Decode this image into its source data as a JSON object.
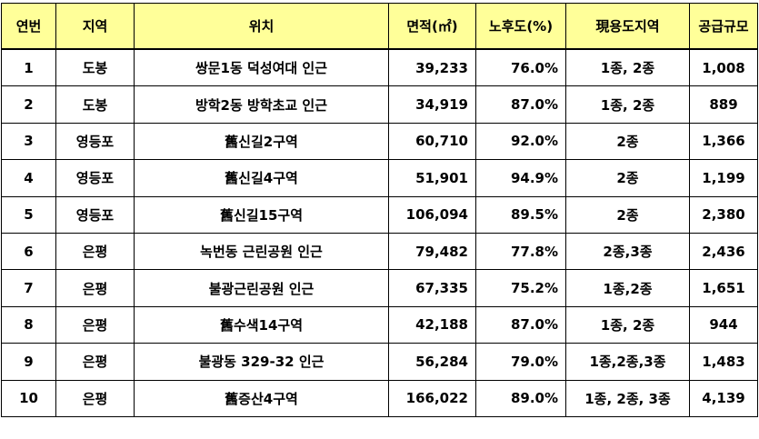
{
  "headers": {
    "no": "연번",
    "region": "지역",
    "location": "위치",
    "area": "면적(㎡)",
    "aging": "노후도(%)",
    "zoning": "現용도지역",
    "supply": "공급규모"
  },
  "rows": [
    {
      "no": "1",
      "region": "도봉",
      "location": "쌍문1동 덕성여대 인근",
      "area": "39,233",
      "aging": "76.0%",
      "zoning": "1종, 2종",
      "supply": "1,008"
    },
    {
      "no": "2",
      "region": "도봉",
      "location": "방학2동 방학초교 인근",
      "area": "34,919",
      "aging": "87.0%",
      "zoning": "1종, 2종",
      "supply": "889"
    },
    {
      "no": "3",
      "region": "영등포",
      "location": "舊신길2구역",
      "area": "60,710",
      "aging": "92.0%",
      "zoning": "2종",
      "supply": "1,366"
    },
    {
      "no": "4",
      "region": "영등포",
      "location": "舊신길4구역",
      "area": "51,901",
      "aging": "94.9%",
      "zoning": "2종",
      "supply": "1,199"
    },
    {
      "no": "5",
      "region": "영등포",
      "location": "舊신길15구역",
      "area": "106,094",
      "aging": "89.5%",
      "zoning": "2종",
      "supply": "2,380"
    },
    {
      "no": "6",
      "region": "은평",
      "location": "녹번동 근린공원 인근",
      "area": "79,482",
      "aging": "77.8%",
      "zoning": "2종,3종",
      "supply": "2,436"
    },
    {
      "no": "7",
      "region": "은평",
      "location": "불광근린공원 인근",
      "area": "67,335",
      "aging": "75.2%",
      "zoning": "1종,2종",
      "supply": "1,651"
    },
    {
      "no": "8",
      "region": "은평",
      "location": "舊수색14구역",
      "area": "42,188",
      "aging": "87.0%",
      "zoning": "1종, 2종",
      "supply": "944"
    },
    {
      "no": "9",
      "region": "은평",
      "location": "불광동 329-32 인근",
      "area": "56,284",
      "aging": "79.0%",
      "zoning": "1종,2종,3종",
      "supply": "1,483"
    },
    {
      "no": "10",
      "region": "은평",
      "location": "舊증산4구역",
      "area": "166,022",
      "aging": "89.0%",
      "zoning": "1종, 2종, 3종",
      "supply": "4,139"
    }
  ],
  "colors": {
    "header_bg": "#ffff99",
    "border": "#000000"
  }
}
